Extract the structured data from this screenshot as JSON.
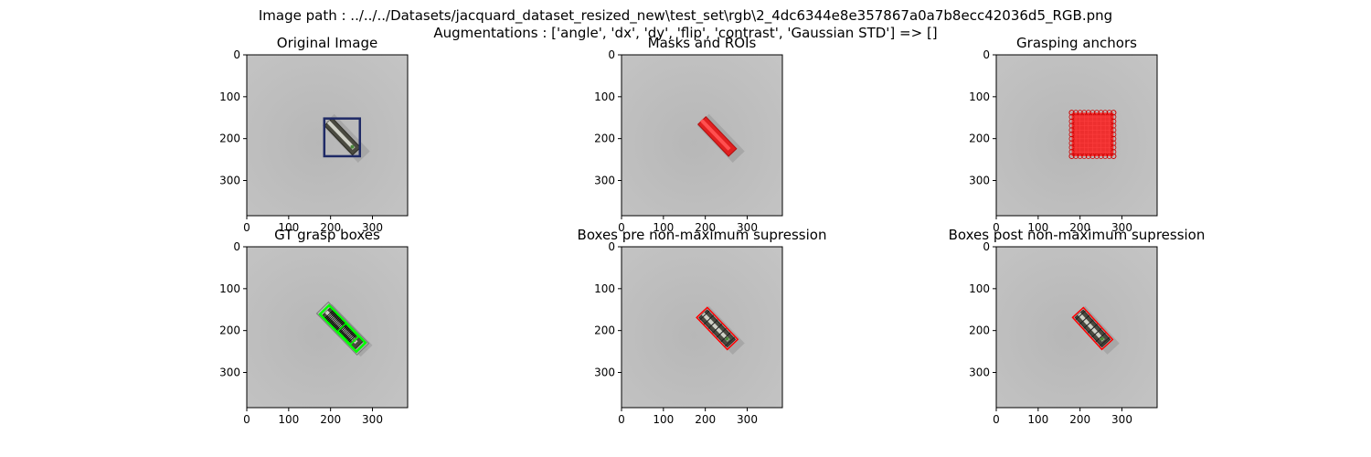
{
  "figure": {
    "suptitle_line1": "Image path : ../../../Datasets/jacquard_dataset_resized_new\\test_set\\rgb\\2_4dc6344e8e357867a0a7b8ecc42036d5_RGB.png",
    "suptitle_line2": "Augmentations : ['angle', 'dx', 'dy', 'flip', 'contrast', 'Gaussian STD'] => []"
  },
  "chart_data": [
    {
      "type": "image",
      "title": "Original Image",
      "xlim": [
        0,
        384
      ],
      "ylim": [
        384,
        0
      ],
      "xticks": [
        0,
        100,
        200,
        300
      ],
      "yticks": [
        0,
        100,
        200,
        300
      ],
      "object": {
        "p1": [
          195,
          160
        ],
        "p2": [
          262,
          230
        ]
      },
      "overlays": [
        {
          "kind": "roi_box",
          "color": "#1f2a66",
          "x": [
            185,
            270
          ],
          "y": [
            152,
            242
          ]
        }
      ]
    },
    {
      "type": "image",
      "title": "Masks and ROIs",
      "xlim": [
        0,
        384
      ],
      "ylim": [
        384,
        0
      ],
      "xticks": [
        0,
        100,
        200,
        300
      ],
      "yticks": [
        0,
        100,
        200,
        300
      ],
      "object": {
        "p1": [
          195,
          160
        ],
        "p2": [
          262,
          230
        ]
      },
      "overlays": [
        {
          "kind": "mask",
          "color": "#e02020"
        }
      ]
    },
    {
      "type": "image",
      "title": "Grasping anchors",
      "xlim": [
        0,
        384
      ],
      "ylim": [
        384,
        0
      ],
      "xticks": [
        0,
        100,
        200,
        300
      ],
      "yticks": [
        0,
        100,
        200,
        300
      ],
      "object": null,
      "overlays": [
        {
          "kind": "anchor_grid",
          "color": "#ff0000",
          "x": [
            180,
            280
          ],
          "y": [
            138,
            242
          ]
        }
      ]
    },
    {
      "type": "image",
      "title": "GT grasp boxes",
      "xlim": [
        0,
        384
      ],
      "ylim": [
        384,
        0
      ],
      "xticks": [
        0,
        100,
        200,
        300
      ],
      "yticks": [
        0,
        100,
        200,
        300
      ],
      "object": {
        "p1": [
          190,
          155
        ],
        "p2": [
          268,
          235
        ]
      },
      "overlays": [
        {
          "kind": "grasp_boxes",
          "color": "#00ff00",
          "secondary": "#000000"
        }
      ]
    },
    {
      "type": "image",
      "title": "Boxes pre non-maximum supression",
      "xlim": [
        0,
        384
      ],
      "ylim": [
        384,
        0
      ],
      "xticks": [
        0,
        100,
        200,
        300
      ],
      "yticks": [
        0,
        100,
        200,
        300
      ],
      "object": {
        "p1": [
          195,
          160
        ],
        "p2": [
          262,
          230
        ]
      },
      "overlays": [
        {
          "kind": "pred_boxes",
          "color": "#ff0000"
        }
      ]
    },
    {
      "type": "image",
      "title": "Boxes post non-maximum supression",
      "xlim": [
        0,
        384
      ],
      "ylim": [
        384,
        0
      ],
      "xticks": [
        0,
        100,
        200,
        300
      ],
      "yticks": [
        0,
        100,
        200,
        300
      ],
      "object": {
        "p1": [
          198,
          160
        ],
        "p2": [
          262,
          230
        ]
      },
      "overlays": [
        {
          "kind": "pred_boxes",
          "color": "#ff0000"
        }
      ]
    }
  ]
}
